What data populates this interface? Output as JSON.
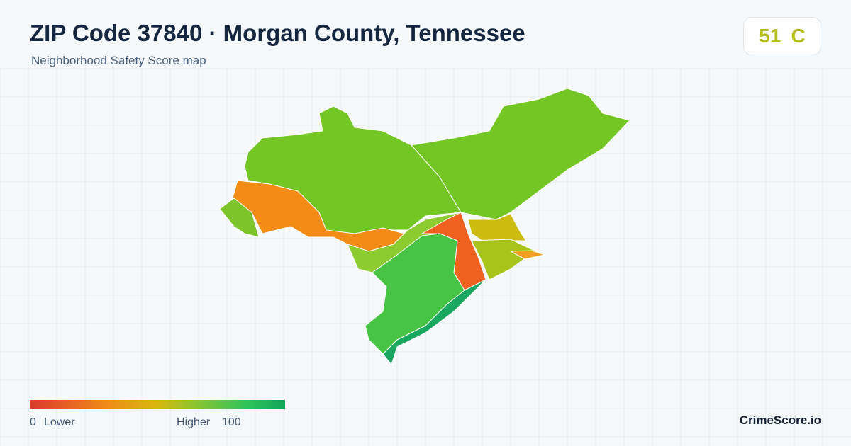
{
  "header": {
    "title": "ZIP Code 37840 · Morgan County, Tennessee",
    "subtitle": "Neighborhood Safety Score map"
  },
  "badge": {
    "score": 51,
    "grade": "C"
  },
  "legend": {
    "min": 0,
    "min_label": "Lower",
    "max_label": "Higher",
    "max": 100
  },
  "brand": "CrimeScore.io"
}
